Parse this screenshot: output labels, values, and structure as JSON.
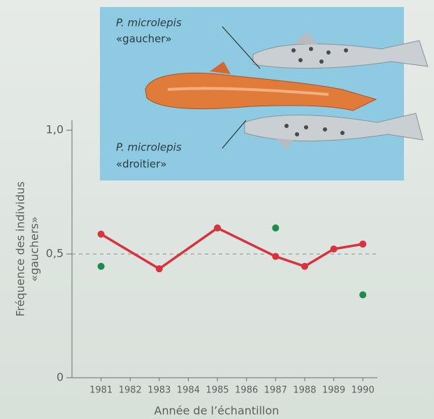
{
  "chart_data": {
    "type": "line",
    "xlabel": "Année de l’échantillon",
    "ylabel": [
      "Fréquence des individus",
      "«gauchers»"
    ],
    "xlim": [
      1980,
      1990.5
    ],
    "xticks": [
      1981,
      1982,
      1983,
      1984,
      1985,
      1986,
      1987,
      1988,
      1989,
      1990
    ],
    "ylim": [
      0,
      1.04
    ],
    "yticks": [
      0,
      {
        "value": 0.5,
        "label": "0,5"
      },
      {
        "value": 1.0,
        "label": "1,0"
      }
    ],
    "hline": 0.5,
    "series": [
      {
        "type": "line",
        "color": "#d8323f",
        "x": [
          1981,
          1983,
          1985,
          1987,
          1988,
          1989,
          1990
        ],
        "values": [
          0.58,
          0.44,
          0.605,
          0.49,
          0.45,
          0.52,
          0.54
        ]
      },
      {
        "type": "scatter",
        "color": "#1f8a4c",
        "x": [
          1981,
          1987,
          1990
        ],
        "values": [
          0.45,
          0.605,
          0.335
        ]
      }
    ],
    "annotations": [
      "P. microlepis",
      "«gaucher»",
      "P. microlepis",
      "«droitier»"
    ]
  }
}
